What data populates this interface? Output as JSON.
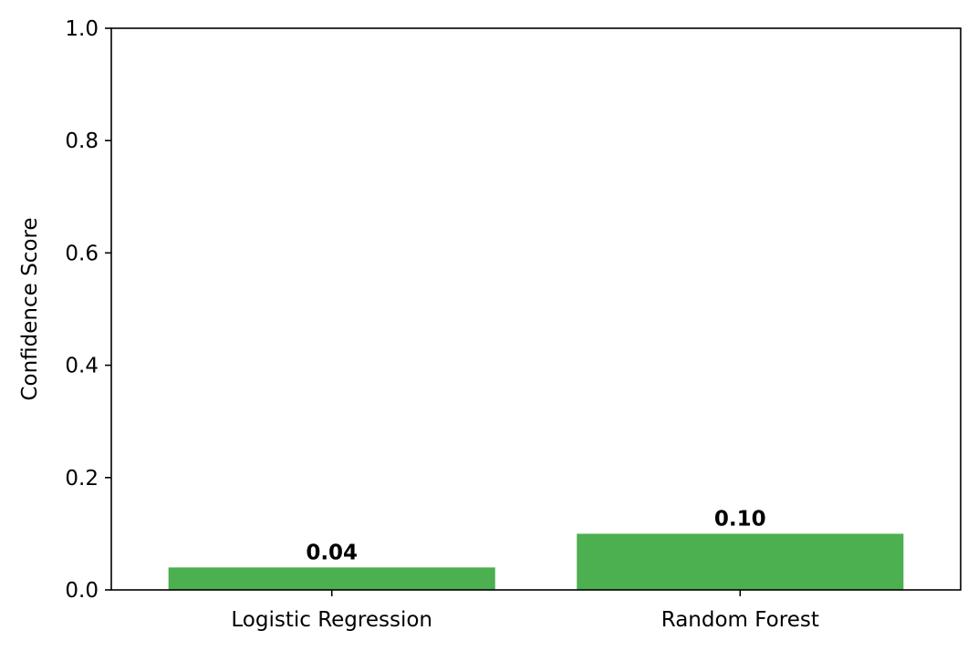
{
  "chart_data": {
    "type": "bar",
    "title": "",
    "xlabel": "",
    "ylabel": "Confidence Score",
    "categories": [
      "Logistic Regression",
      "Random Forest"
    ],
    "values": [
      0.04,
      0.1
    ],
    "data_labels": [
      "0.04",
      "0.10"
    ],
    "ylim": [
      0,
      1.0
    ],
    "yticks": [
      0.0,
      0.2,
      0.4,
      0.6,
      0.8,
      1.0
    ],
    "ytick_labels": [
      "0.0",
      "0.2",
      "0.4",
      "0.6",
      "0.8",
      "1.0"
    ],
    "grid": false,
    "legend": "none",
    "bar_color": "#4caf50"
  }
}
